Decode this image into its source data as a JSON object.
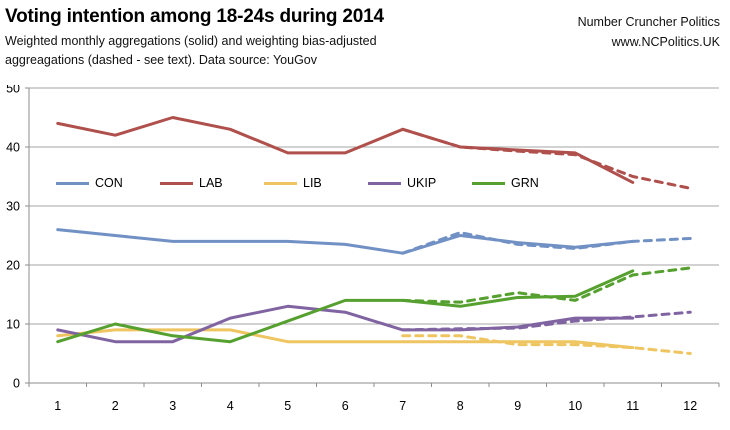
{
  "header": {
    "title": "Voting intention among 18-24s during 2014",
    "subtitle_line1": "Weighted monthly aggregations (solid) and weighting bias-adjusted",
    "subtitle_line2": "aggreagations (dashed - see text). Data source: YouGov",
    "brand_line1": "Number Cruncher Politics",
    "brand_line2": "www.NCPolitics.UK"
  },
  "chart_data": {
    "type": "line",
    "title": "Voting intention among 18-24s during 2014",
    "xlabel": "",
    "ylabel": "",
    "x_categories": [
      1,
      2,
      3,
      4,
      5,
      6,
      7,
      8,
      9,
      10,
      11,
      12
    ],
    "ylim": [
      0,
      50
    ],
    "yticks": [
      0,
      10,
      20,
      30,
      40,
      50
    ],
    "grid": true,
    "legend_position": "inside-upper-left-horizontal",
    "axis_color": "#8C8C8C",
    "gridline_color": "#A6A6A6",
    "legend": [
      {
        "label": "CON",
        "color": "#7191C5"
      },
      {
        "label": "LAB",
        "color": "#AF504C"
      },
      {
        "label": "LIB",
        "color": "#EEC561"
      },
      {
        "label": "UKIP",
        "color": "#8064A2"
      },
      {
        "label": "GRN",
        "color": "#55A02E"
      }
    ],
    "series": [
      {
        "name": "CON (weighted monthly aggregation)",
        "short": "CON",
        "style": "solid",
        "color": "#7191C5",
        "x": [
          1,
          2,
          3,
          4,
          5,
          6,
          7,
          8,
          9,
          10,
          11
        ],
        "values": [
          26,
          25,
          24,
          24,
          24,
          23.5,
          22,
          25,
          23.8,
          23,
          24
        ]
      },
      {
        "name": "LAB (weighted monthly aggregation)",
        "short": "LAB",
        "style": "solid",
        "color": "#AF504C",
        "x": [
          1,
          2,
          3,
          4,
          5,
          6,
          7,
          8,
          9,
          10,
          11
        ],
        "values": [
          44,
          42,
          45,
          43,
          39,
          39,
          43,
          40,
          39.5,
          39,
          34
        ]
      },
      {
        "name": "LIB (weighted monthly aggregation)",
        "short": "LIB",
        "style": "solid",
        "color": "#EEC561",
        "x": [
          1,
          2,
          3,
          4,
          5,
          6,
          7,
          8,
          9,
          10,
          11
        ],
        "values": [
          8,
          9,
          9,
          9,
          7,
          7,
          7,
          7,
          7,
          7,
          6
        ]
      },
      {
        "name": "UKIP (weighted monthly aggregation)",
        "short": "UKIP",
        "style": "solid",
        "color": "#8064A2",
        "x": [
          1,
          2,
          3,
          4,
          5,
          6,
          7,
          8,
          9,
          10,
          11
        ],
        "values": [
          9,
          7,
          7,
          11,
          13,
          12,
          9,
          9,
          9.5,
          11,
          11
        ]
      },
      {
        "name": "GRN (weighted monthly aggregation)",
        "short": "GRN",
        "style": "solid",
        "color": "#55A02E",
        "x": [
          1,
          2,
          3,
          4,
          5,
          6,
          7,
          8,
          9,
          10,
          11
        ],
        "values": [
          7,
          10,
          8,
          7,
          10.5,
          14,
          14,
          13,
          14.5,
          14.7,
          19
        ]
      },
      {
        "name": "CON (bias-adjusted aggregation)",
        "short": "CON",
        "style": "dashed",
        "color": "#7191C5",
        "x": [
          7,
          8,
          9,
          10,
          11,
          12
        ],
        "values": [
          22,
          25.5,
          23.5,
          22.8,
          24,
          24.5
        ]
      },
      {
        "name": "LAB (bias-adjusted aggregation)",
        "short": "LAB",
        "style": "dashed",
        "color": "#AF504C",
        "x": [
          7,
          8,
          9,
          10,
          11,
          12
        ],
        "values": [
          43,
          40,
          39.3,
          38.7,
          35,
          33
        ]
      },
      {
        "name": "LIB (bias-adjusted aggregation)",
        "short": "LIB",
        "style": "dashed",
        "color": "#EEC561",
        "x": [
          7,
          8,
          9,
          10,
          11,
          12
        ],
        "values": [
          8,
          8,
          6.5,
          6.5,
          6,
          5
        ]
      },
      {
        "name": "UKIP (bias-adjusted aggregation)",
        "short": "UKIP",
        "style": "dashed",
        "color": "#8064A2",
        "x": [
          7,
          8,
          9,
          10,
          11,
          12
        ],
        "values": [
          9,
          9.2,
          9.3,
          10.5,
          11.2,
          12
        ]
      },
      {
        "name": "GRN (bias-adjusted aggregation)",
        "short": "GRN",
        "style": "dashed",
        "color": "#55A02E",
        "x": [
          7,
          8,
          9,
          10,
          11,
          12
        ],
        "values": [
          14,
          13.7,
          15.3,
          14,
          18.3,
          19.5
        ]
      }
    ]
  }
}
